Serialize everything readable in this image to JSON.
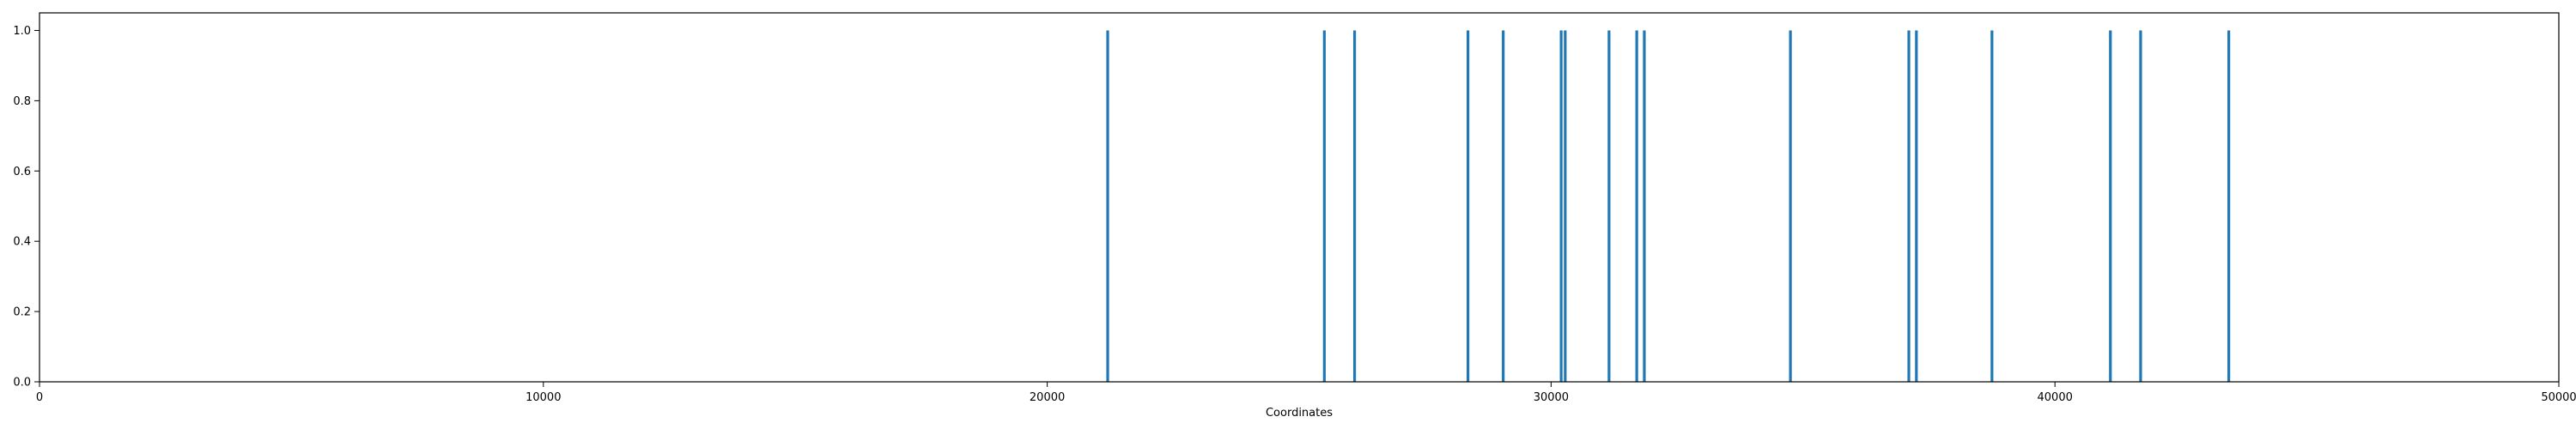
{
  "chart_data": {
    "type": "bar",
    "title": "",
    "xlabel": "Coordinates",
    "ylabel": "",
    "xlim": [
      0,
      50000
    ],
    "ylim": [
      0,
      1.05
    ],
    "grid": false,
    "x_ticks": [
      0,
      10000,
      20000,
      30000,
      40000,
      50000
    ],
    "x_tick_labels": [
      "0",
      "10000",
      "20000",
      "30000",
      "40000",
      "50000"
    ],
    "y_ticks": [
      0.0,
      0.2,
      0.4,
      0.6,
      0.8,
      1.0
    ],
    "y_tick_labels": [
      "0.0",
      "0.2",
      "0.4",
      "0.6",
      "0.8",
      "1.0"
    ],
    "color": "#1f77b4",
    "series": [
      {
        "x": [
          21200,
          25500,
          26100,
          28350,
          29050,
          30200,
          30280,
          31150,
          31700,
          31850,
          34750,
          37100,
          37250,
          38750,
          41100,
          41700,
          43450
        ],
        "values": [
          1,
          1,
          1,
          1,
          1,
          1,
          1,
          1,
          1,
          1,
          1,
          1,
          1,
          1,
          1,
          1,
          1
        ]
      }
    ]
  }
}
